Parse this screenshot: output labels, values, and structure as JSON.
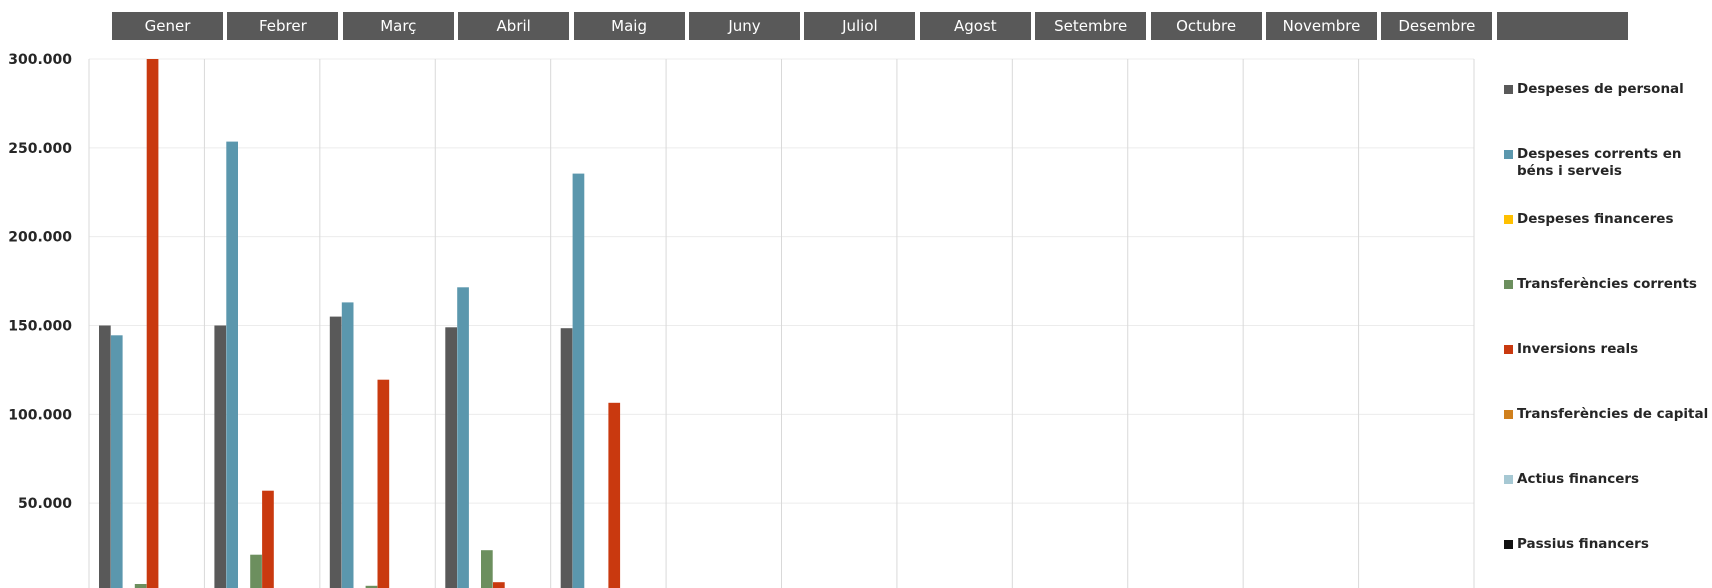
{
  "months": [
    "Gener",
    "Febrer",
    "Març",
    "Abril",
    "Maig",
    "Juny",
    "Juliol",
    "Agost",
    "Setembre",
    "Octubre",
    "Novembre",
    "Desembre",
    ""
  ],
  "chart_data": {
    "type": "bar",
    "title": "",
    "xlabel": "",
    "ylabel": "",
    "categories": [
      "Gener",
      "Febrer",
      "Març",
      "Abril",
      "Maig",
      "Juny",
      "Juliol",
      "Agost",
      "Setembre",
      "Octubre",
      "Novembre",
      "Desembre"
    ],
    "ylim": [
      0,
      300000
    ],
    "yticks": [
      50000,
      100000,
      150000,
      200000,
      250000,
      300000
    ],
    "ytick_labels": [
      "50.000",
      "100.000",
      "150.000",
      "200.000",
      "250.000",
      "300.000"
    ],
    "grid": true,
    "legend_position": "right",
    "series": [
      {
        "name": "Despeses de personal",
        "color": "#595959",
        "values": [
          150000,
          150000,
          155000,
          149000,
          148500,
          null,
          null,
          null,
          null,
          null,
          null,
          null
        ]
      },
      {
        "name": "Despeses corrents en béns i serveis",
        "color": "#5b97ad",
        "values": [
          144500,
          253500,
          163000,
          171500,
          235500,
          null,
          null,
          null,
          null,
          null,
          null,
          null
        ]
      },
      {
        "name": "Despeses financeres",
        "color": "#ffc000",
        "values": [
          0,
          0,
          0,
          0,
          0,
          null,
          null,
          null,
          null,
          null,
          null,
          null
        ]
      },
      {
        "name": "Transferències corrents",
        "color": "#6c8f5e",
        "values": [
          4500,
          21000,
          3500,
          23500,
          0,
          null,
          null,
          null,
          null,
          null,
          null,
          null
        ]
      },
      {
        "name": "Inversions reals",
        "color": "#c9390f",
        "values": [
          300000,
          57000,
          119500,
          5500,
          106500,
          null,
          null,
          null,
          null,
          null,
          null,
          null
        ]
      },
      {
        "name": "Transferències de capital",
        "color": "#d0801d",
        "values": [
          0,
          0,
          0,
          0,
          0,
          null,
          null,
          null,
          null,
          null,
          null,
          null
        ]
      },
      {
        "name": "Actius financers",
        "color": "#a6c8d3",
        "values": [
          0,
          0,
          0,
          0,
          0,
          null,
          null,
          null,
          null,
          null,
          null,
          null
        ]
      },
      {
        "name": "Passius financers",
        "color": "#111111",
        "values": [
          0,
          0,
          0,
          0,
          0,
          null,
          null,
          null,
          null,
          null,
          null,
          null
        ]
      }
    ]
  }
}
